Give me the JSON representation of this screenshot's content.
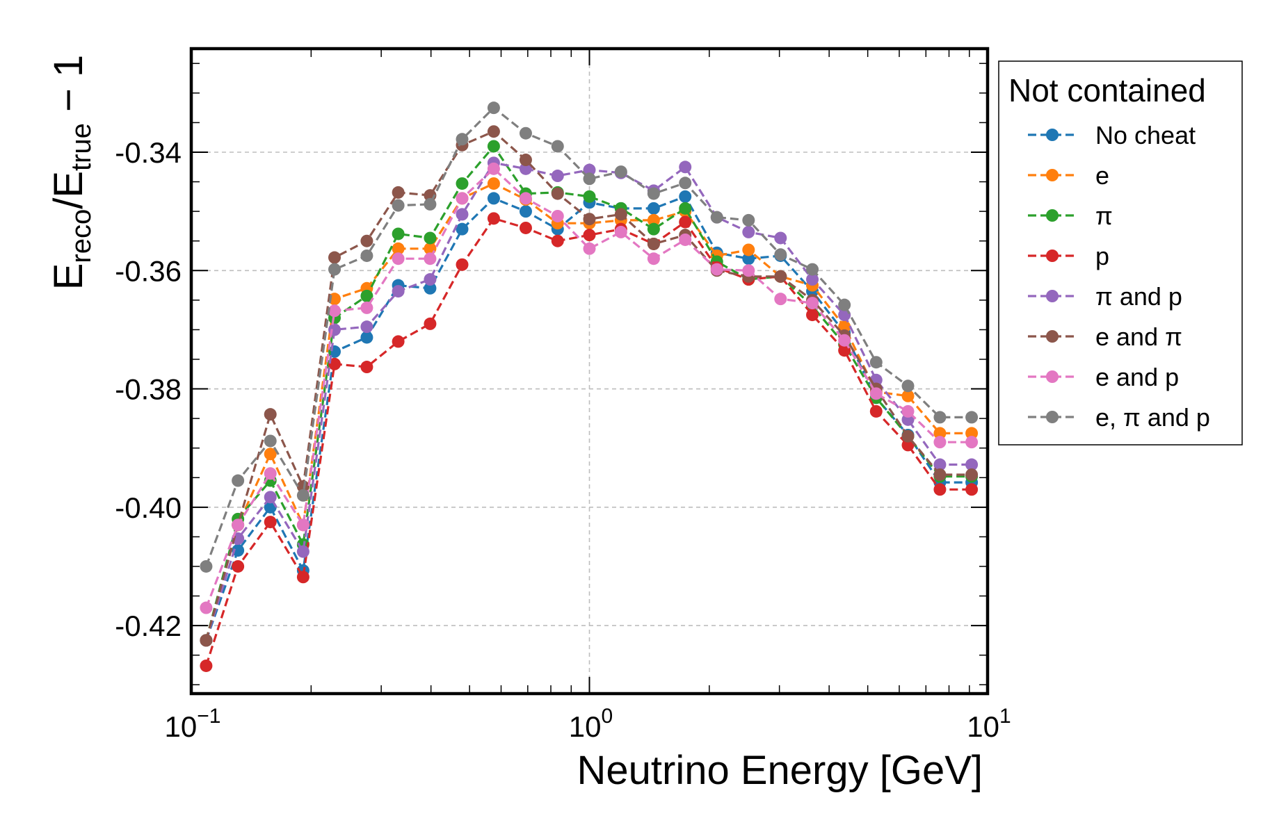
{
  "chart_data": {
    "type": "line",
    "xlabel": "Neutrino Energy [GeV]",
    "ylabel": {
      "main": "E",
      "sub1": "reco",
      "slash": "/E",
      "sub2": "true",
      "tail": " − 1"
    },
    "xscale": "log",
    "xlim": [
      0.1,
      10
    ],
    "ylim": [
      -0.4315,
      -0.3225
    ],
    "x_ticks": [
      {
        "value": 0.1,
        "base": "10",
        "exp": "−1"
      },
      {
        "value": 1,
        "base": "10",
        "exp": "0"
      },
      {
        "value": 10,
        "base": "10",
        "exp": "1"
      }
    ],
    "y_ticks": [
      {
        "value": -0.34,
        "label": "-0.34"
      },
      {
        "value": -0.36,
        "label": "-0.36"
      },
      {
        "value": -0.38,
        "label": "-0.38"
      },
      {
        "value": -0.4,
        "label": "-0.40"
      },
      {
        "value": -0.42,
        "label": "-0.42"
      }
    ],
    "grid": true,
    "legend": {
      "title": "Not contained",
      "placement": "outside-right"
    },
    "x": [
      0.109,
      0.131,
      0.158,
      0.191,
      0.229,
      0.276,
      0.331,
      0.398,
      0.479,
      0.575,
      0.692,
      0.832,
      1.0,
      1.2,
      1.45,
      1.74,
      2.09,
      2.51,
      3.02,
      3.63,
      4.37,
      5.25,
      6.31,
      7.59,
      9.12
    ],
    "series": [
      {
        "name": "No cheat",
        "color": "#1f77b4",
        "values": [
          -0.4225,
          -0.4073,
          -0.4,
          -0.4107,
          -0.3737,
          -0.3713,
          -0.3625,
          -0.363,
          -0.353,
          -0.3478,
          -0.35,
          -0.353,
          -0.3485,
          -0.3495,
          -0.3495,
          -0.3475,
          -0.357,
          -0.358,
          -0.3575,
          -0.3635,
          -0.3705,
          -0.3815,
          -0.3878,
          -0.3958,
          -0.3958
        ]
      },
      {
        "name": "e",
        "color": "#ff7f0e",
        "values": [
          -0.4225,
          -0.403,
          -0.391,
          -0.403,
          -0.3648,
          -0.363,
          -0.3563,
          -0.3563,
          -0.3478,
          -0.3453,
          -0.348,
          -0.352,
          -0.352,
          -0.3515,
          -0.3515,
          -0.35,
          -0.3575,
          -0.3565,
          -0.361,
          -0.3625,
          -0.3695,
          -0.3805,
          -0.3812,
          -0.3875,
          -0.3875
        ]
      },
      {
        "name": "π",
        "color": "#2ca02c",
        "values": [
          -0.4225,
          -0.402,
          -0.3955,
          -0.4063,
          -0.368,
          -0.3643,
          -0.3538,
          -0.3545,
          -0.3453,
          -0.339,
          -0.347,
          -0.3468,
          -0.3475,
          -0.3495,
          -0.353,
          -0.3495,
          -0.3585,
          -0.3615,
          -0.361,
          -0.366,
          -0.3725,
          -0.3815,
          -0.388,
          -0.3948,
          -0.3948
        ]
      },
      {
        "name": "p",
        "color": "#d62728",
        "values": [
          -0.4268,
          -0.41,
          -0.4025,
          -0.4118,
          -0.3758,
          -0.3763,
          -0.372,
          -0.369,
          -0.359,
          -0.3512,
          -0.3528,
          -0.355,
          -0.354,
          -0.353,
          -0.3555,
          -0.3518,
          -0.3595,
          -0.3615,
          -0.361,
          -0.3675,
          -0.3735,
          -0.3838,
          -0.3895,
          -0.397,
          -0.397
        ]
      },
      {
        "name": "π and p",
        "color": "#9467bd",
        "values": [
          -0.4225,
          -0.4053,
          -0.3983,
          -0.4075,
          -0.37,
          -0.3695,
          -0.3635,
          -0.3615,
          -0.3505,
          -0.3418,
          -0.3428,
          -0.344,
          -0.343,
          -0.3435,
          -0.3465,
          -0.3425,
          -0.351,
          -0.3535,
          -0.3545,
          -0.3615,
          -0.3675,
          -0.3785,
          -0.3852,
          -0.3928,
          -0.3928
        ]
      },
      {
        "name": "e and π",
        "color": "#8c564b",
        "values": [
          -0.4225,
          -0.403,
          -0.3843,
          -0.3965,
          -0.3578,
          -0.355,
          -0.3468,
          -0.3473,
          -0.3388,
          -0.3365,
          -0.3413,
          -0.347,
          -0.3513,
          -0.3505,
          -0.3555,
          -0.354,
          -0.36,
          -0.361,
          -0.361,
          -0.365,
          -0.371,
          -0.38,
          -0.388,
          -0.3945,
          -0.3945
        ]
      },
      {
        "name": "e and p",
        "color": "#e377c2",
        "values": [
          -0.417,
          -0.403,
          -0.3943,
          -0.403,
          -0.3668,
          -0.3663,
          -0.358,
          -0.358,
          -0.3478,
          -0.3428,
          -0.3478,
          -0.3508,
          -0.3563,
          -0.3535,
          -0.358,
          -0.3548,
          -0.3598,
          -0.36,
          -0.3648,
          -0.3655,
          -0.3718,
          -0.3808,
          -0.3838,
          -0.389,
          -0.389
        ]
      },
      {
        "name": "e, π and p",
        "color": "#7f7f7f",
        "values": [
          -0.41,
          -0.3955,
          -0.3888,
          -0.398,
          -0.3598,
          -0.3575,
          -0.349,
          -0.3488,
          -0.3378,
          -0.3325,
          -0.3368,
          -0.339,
          -0.3445,
          -0.3433,
          -0.347,
          -0.3452,
          -0.351,
          -0.3515,
          -0.3573,
          -0.3598,
          -0.3658,
          -0.3755,
          -0.3795,
          -0.3848,
          -0.3848
        ]
      }
    ]
  }
}
